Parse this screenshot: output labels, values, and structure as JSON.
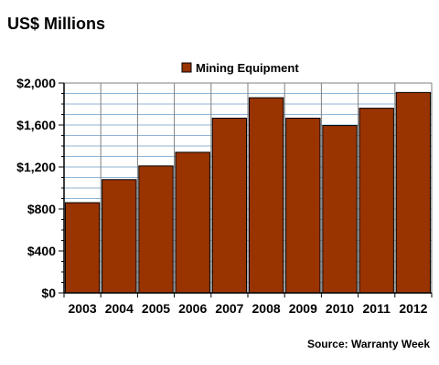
{
  "chart_data": {
    "type": "bar",
    "title": "US$ Millions",
    "source": "Source: Warranty Week",
    "categories": [
      "2003",
      "2004",
      "2005",
      "2006",
      "2007",
      "2008",
      "2009",
      "2010",
      "2011",
      "2012"
    ],
    "series": [
      {
        "name": "Mining Equipment",
        "values": [
          860,
          1080,
          1210,
          1340,
          1665,
          1860,
          1665,
          1595,
          1760,
          1910
        ]
      }
    ],
    "ylim": [
      0,
      2000
    ],
    "yticks": [
      0,
      400,
      800,
      1200,
      1600,
      2000
    ],
    "ytick_labels": [
      "$0",
      "$400",
      "$800",
      "$1,200",
      "$1,600",
      "$2,000"
    ],
    "grid": true,
    "legend_position": "top-center",
    "bar_color": "#993300"
  }
}
